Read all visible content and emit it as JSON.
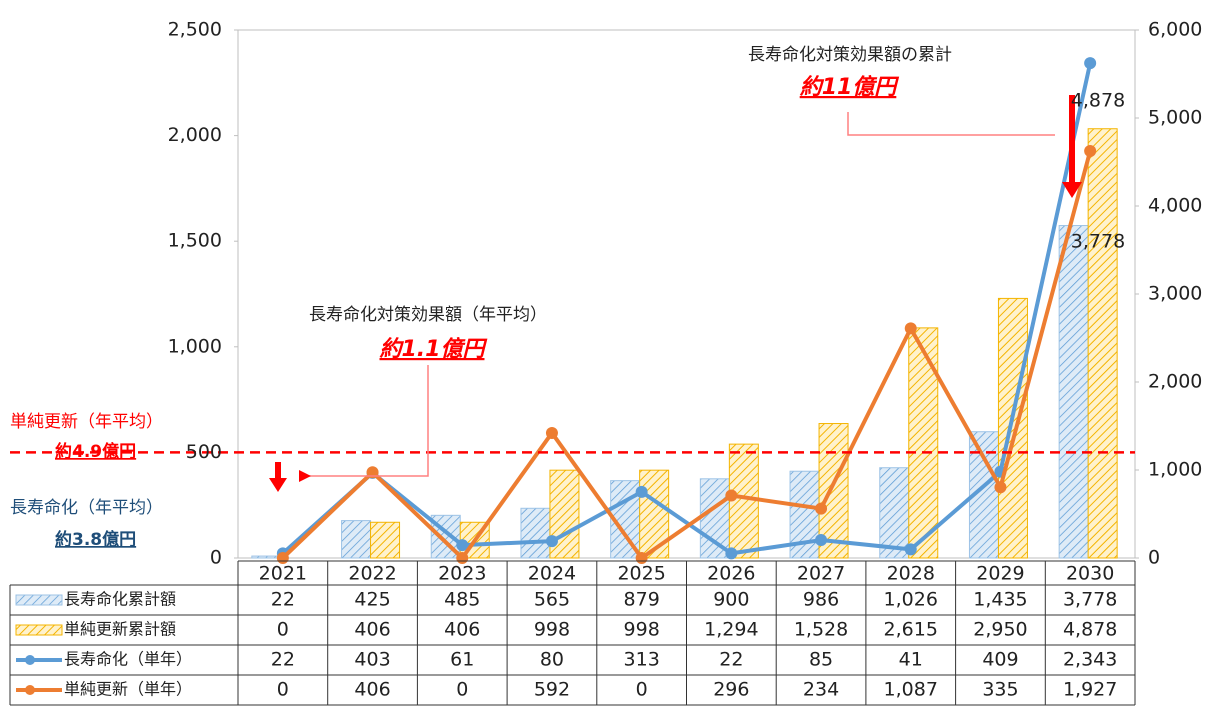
{
  "chart_data": {
    "type": "bar",
    "categories": [
      "2021",
      "2022",
      "2023",
      "2024",
      "2025",
      "2026",
      "2027",
      "2028",
      "2029",
      "2030"
    ],
    "series": [
      {
        "name": "長寿命化累計額",
        "type": "bar",
        "axis": "y2",
        "color": "#9dc3e6",
        "values": [
          22,
          425,
          485,
          565,
          879,
          900,
          986,
          1026,
          1435,
          3778
        ],
        "value_labels": [
          "22",
          "425",
          "485",
          "565",
          "879",
          "900",
          "986",
          "1,026",
          "1,435",
          "3,778"
        ]
      },
      {
        "name": "単純更新累計額",
        "type": "bar",
        "axis": "y2",
        "color": "#f4b400",
        "values": [
          0,
          406,
          406,
          998,
          998,
          1294,
          1528,
          2615,
          2950,
          4878
        ],
        "value_labels": [
          "0",
          "406",
          "406",
          "998",
          "998",
          "1,294",
          "1,528",
          "2,615",
          "2,950",
          "4,878"
        ]
      },
      {
        "name": "長寿命化（単年）",
        "type": "line",
        "color": "#5b9bd5",
        "values": [
          22,
          403,
          61,
          80,
          313,
          22,
          85,
          41,
          409,
          2343
        ],
        "value_labels": [
          "22",
          "403",
          "61",
          "80",
          "313",
          "22",
          "85",
          "41",
          "409",
          "2,343"
        ]
      },
      {
        "name": "単純更新（単年）",
        "type": "line",
        "color": "#ed7d31",
        "values": [
          0,
          406,
          0,
          592,
          0,
          296,
          234,
          1087,
          335,
          1927
        ],
        "value_labels": [
          "0",
          "406",
          "0",
          "592",
          "0",
          "296",
          "234",
          "1,087",
          "335",
          "1,927"
        ]
      }
    ],
    "ylim": [
      0,
      2500
    ],
    "yticks": [
      0,
      500,
      {
        "value": 1000,
        "label": "1,000"
      },
      {
        "value": 1500,
        "label": "1,500"
      },
      {
        "value": 2000,
        "label": "2,000"
      },
      {
        "value": 2500,
        "label": "2,500"
      }
    ],
    "y2lim": [
      0,
      6000
    ],
    "y2ticks": [
      0,
      {
        "value": 1000,
        "label": "1,000"
      },
      {
        "value": 2000,
        "label": "2,000"
      },
      {
        "value": 3000,
        "label": "3,000"
      },
      {
        "value": 4000,
        "label": "4,000"
      },
      {
        "value": 5000,
        "label": "5,000"
      },
      {
        "value": 6000,
        "label": "6,000"
      }
    ],
    "reference_line": {
      "value": 500,
      "color": "#ff0000"
    },
    "annotations": [
      "長寿命化対策効果額の累計",
      "約11億円",
      "長寿命化対策効果額（年平均）",
      "約1.1億円",
      "単純更新（年平均）",
      "約4.9億円",
      "長寿命化（年平均）",
      "約3.8億円"
    ]
  }
}
